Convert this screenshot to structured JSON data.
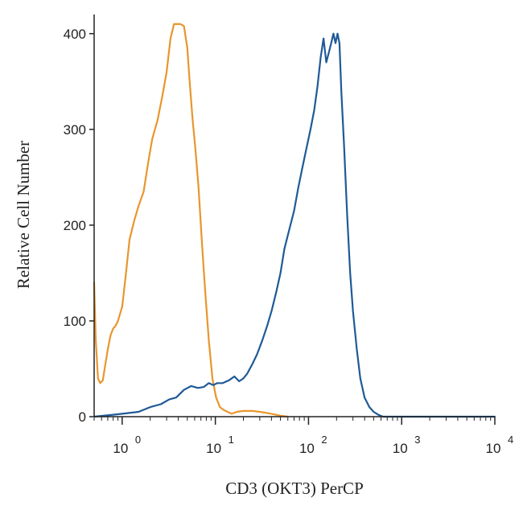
{
  "chart_data": {
    "type": "line",
    "title": "",
    "xlabel": "CD3 (OKT3) PerCP",
    "ylabel": "Relative Cell Number",
    "x_scale": "log",
    "xlim": [
      0.5,
      10000
    ],
    "ylim": [
      0,
      420
    ],
    "x_ticks": [
      {
        "value": 1,
        "base": "10",
        "exp": "0"
      },
      {
        "value": 10,
        "base": "10",
        "exp": "1"
      },
      {
        "value": 100,
        "base": "10",
        "exp": "2"
      },
      {
        "value": 1000,
        "base": "10",
        "exp": "3"
      },
      {
        "value": 10000,
        "base": "10",
        "exp": "4"
      }
    ],
    "y_ticks": [
      {
        "value": 0,
        "label": "0"
      },
      {
        "value": 100,
        "label": "100"
      },
      {
        "value": 200,
        "label": "200"
      },
      {
        "value": 300,
        "label": "300"
      },
      {
        "value": 400,
        "label": "400"
      }
    ],
    "grid": false,
    "legend": "none",
    "series": [
      {
        "color": "#E8962E",
        "x": [
          0.5,
          0.52,
          0.55,
          0.58,
          0.62,
          0.66,
          0.7,
          0.75,
          0.8,
          0.85,
          0.9,
          1.0,
          1.1,
          1.2,
          1.35,
          1.5,
          1.7,
          1.9,
          2.1,
          2.4,
          2.7,
          3.0,
          3.3,
          3.6,
          3.9,
          4.2,
          4.6,
          5.0,
          5.3,
          5.7,
          6.1,
          6.6,
          7.2,
          7.8,
          8.5,
          9.3,
          10.2,
          11.2,
          12.3,
          13.5,
          15,
          17,
          20,
          25,
          30,
          40,
          50,
          60
        ],
        "y": [
          140,
          80,
          40,
          35,
          38,
          55,
          70,
          85,
          92,
          95,
          100,
          115,
          150,
          185,
          205,
          220,
          235,
          265,
          290,
          310,
          335,
          360,
          395,
          410,
          410,
          410,
          408,
          385,
          350,
          310,
          280,
          240,
          180,
          130,
          80,
          40,
          20,
          10,
          7,
          5,
          3,
          5,
          6,
          6,
          5,
          3,
          1,
          0
        ]
      },
      {
        "color": "#1F5A96",
        "x": [
          0.5,
          0.8,
          1.0,
          1.5,
          2.0,
          2.6,
          3.2,
          3.8,
          4.6,
          5.5,
          6.5,
          7.5,
          8.5,
          9.5,
          10.5,
          12,
          14,
          16,
          18,
          20,
          22,
          25,
          28,
          32,
          36,
          40,
          45,
          50,
          55,
          62,
          70,
          78,
          86,
          95,
          105,
          115,
          125,
          135,
          145,
          155,
          165,
          175,
          185,
          195,
          205,
          215,
          225,
          240,
          260,
          280,
          300,
          330,
          360,
          400,
          450,
          500,
          560,
          630,
          700,
          1000,
          3000,
          10000
        ],
        "y": [
          0,
          2,
          3,
          5,
          10,
          13,
          18,
          20,
          28,
          32,
          30,
          31,
          35,
          33,
          35,
          35,
          38,
          42,
          37,
          40,
          45,
          55,
          65,
          80,
          95,
          110,
          130,
          150,
          175,
          195,
          215,
          240,
          260,
          280,
          300,
          320,
          345,
          375,
          395,
          370,
          380,
          390,
          400,
          390,
          400,
          390,
          340,
          285,
          210,
          150,
          110,
          70,
          40,
          20,
          10,
          5,
          2,
          0,
          0,
          0,
          0,
          0
        ]
      }
    ]
  }
}
